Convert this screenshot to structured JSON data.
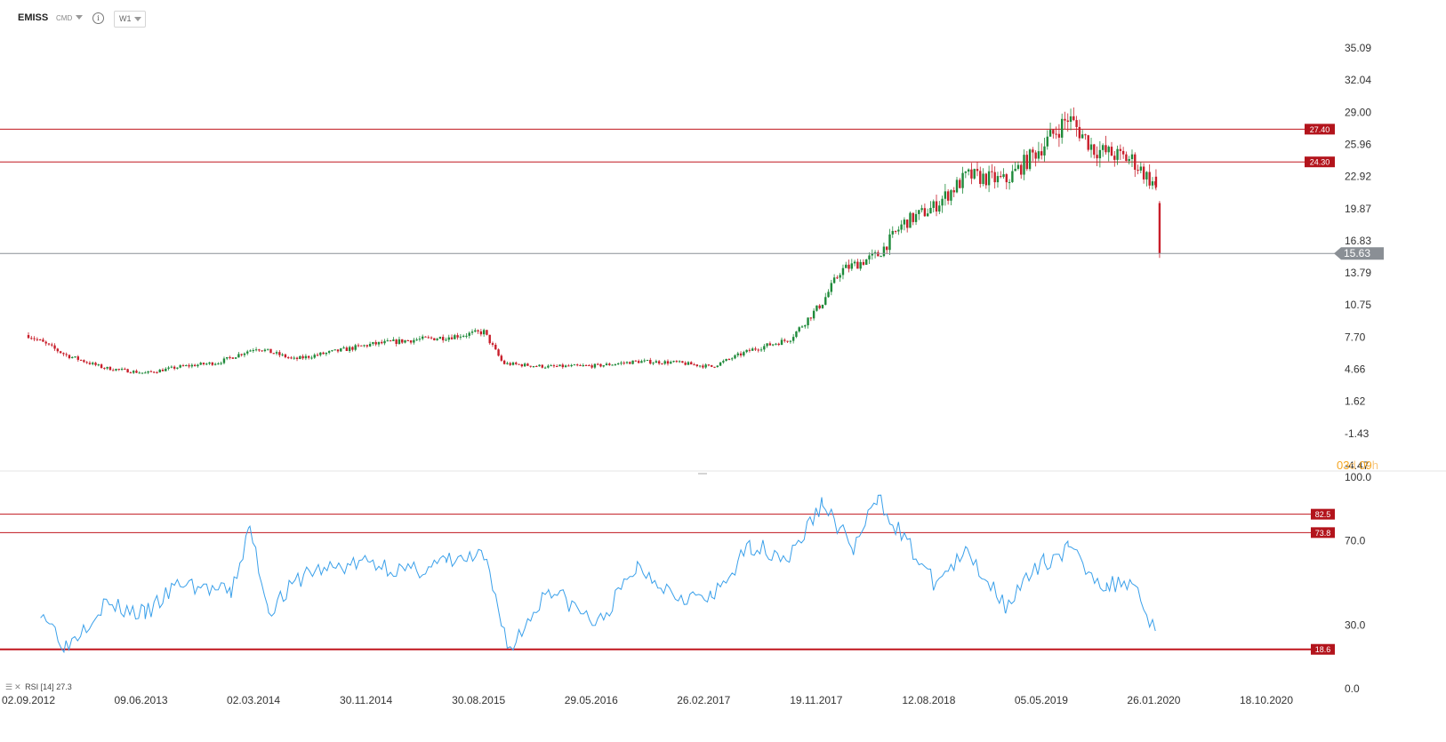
{
  "header": {
    "symbol": "EMISS",
    "source": "CMD",
    "info_icon": "info-icon",
    "timeframe": "W1"
  },
  "price_axis": {
    "labels": [
      "35.09",
      "32.04",
      "29.00",
      "25.96",
      "22.92",
      "19.87",
      "16.83",
      "13.79",
      "10.75",
      "7.70",
      "4.66",
      "1.62",
      "-1.43",
      "-4.47"
    ],
    "min": -4.47,
    "max": 35.09
  },
  "levels": [
    {
      "value": 27.4,
      "label": "27.40",
      "color": "#c0161e"
    },
    {
      "value": 24.3,
      "label": "24.30",
      "color": "#c0161e"
    }
  ],
  "current_price": {
    "value": 15.63,
    "label": "15.63",
    "color": "#8a8f95"
  },
  "countdown": {
    "days": "03",
    "days_unit": "d",
    "hours": "09",
    "hours_unit": "h"
  },
  "rsi": {
    "label": "RSI",
    "period": "[14]",
    "value": "27.3",
    "axis_labels": [
      "100.0",
      "70.0",
      "30.0",
      "0.0"
    ],
    "levels": [
      {
        "value": 82.5,
        "label": "82.5"
      },
      {
        "value": 73.8,
        "label": "73.8"
      },
      {
        "value": 18.6,
        "label": "18.6"
      }
    ]
  },
  "date_axis": {
    "labels": [
      "02.09.2012",
      "09.06.2013",
      "02.03.2014",
      "30.11.2014",
      "30.08.2015",
      "29.05.2016",
      "26.02.2017",
      "19.11.2017",
      "12.08.2018",
      "05.05.2019",
      "26.01.2020",
      "18.10.2020"
    ]
  },
  "chart_data": {
    "type": "candlestick",
    "price_series_approx": [
      [
        "2012-09-02",
        7.9
      ],
      [
        "2012-12-01",
        6.0
      ],
      [
        "2013-03-01",
        4.8
      ],
      [
        "2013-06-09",
        4.3
      ],
      [
        "2013-09-01",
        4.9
      ],
      [
        "2013-12-01",
        5.3
      ],
      [
        "2014-03-02",
        6.7
      ],
      [
        "2014-06-01",
        5.6
      ],
      [
        "2014-09-01",
        6.3
      ],
      [
        "2014-11-30",
        7.0
      ],
      [
        "2015-03-01",
        7.4
      ],
      [
        "2015-06-01",
        7.7
      ],
      [
        "2015-08-30",
        8.2
      ],
      [
        "2015-10-15",
        5.2
      ],
      [
        "2016-02-01",
        4.9
      ],
      [
        "2016-05-29",
        5.0
      ],
      [
        "2016-09-01",
        5.4
      ],
      [
        "2016-12-01",
        5.3
      ],
      [
        "2017-02-26",
        4.9
      ],
      [
        "2017-06-01",
        6.5
      ],
      [
        "2017-09-01",
        7.5
      ],
      [
        "2017-11-19",
        11.0
      ],
      [
        "2018-01-01",
        14.0
      ],
      [
        "2018-04-01",
        15.5
      ],
      [
        "2018-06-01",
        18.5
      ],
      [
        "2018-08-12",
        20.0
      ],
      [
        "2018-11-01",
        23.0
      ],
      [
        "2019-02-01",
        22.5
      ],
      [
        "2019-05-05",
        26.0
      ],
      [
        "2019-07-01",
        28.5
      ],
      [
        "2019-09-01",
        25.5
      ],
      [
        "2019-12-01",
        24.5
      ],
      [
        "2020-01-26",
        22.0
      ],
      [
        "2020-02-05",
        15.63
      ]
    ],
    "rsi_series_approx": [
      [
        "2012-10-01",
        38
      ],
      [
        "2012-12-01",
        20
      ],
      [
        "2013-03-01",
        40
      ],
      [
        "2013-06-09",
        35
      ],
      [
        "2013-09-01",
        50
      ],
      [
        "2014-01-01",
        45
      ],
      [
        "2014-02-15",
        76
      ],
      [
        "2014-04-01",
        37
      ],
      [
        "2014-07-01",
        55
      ],
      [
        "2014-11-30",
        60
      ],
      [
        "2015-03-01",
        55
      ],
      [
        "2015-06-01",
        60
      ],
      [
        "2015-08-30",
        62
      ],
      [
        "2015-11-01",
        18
      ],
      [
        "2016-02-01",
        48
      ],
      [
        "2016-05-29",
        30
      ],
      [
        "2016-09-01",
        58
      ],
      [
        "2016-12-01",
        45
      ],
      [
        "2017-02-26",
        42
      ],
      [
        "2017-06-01",
        68
      ],
      [
        "2017-09-01",
        62
      ],
      [
        "2017-11-19",
        88
      ],
      [
        "2018-02-01",
        66
      ],
      [
        "2018-04-01",
        90
      ],
      [
        "2018-08-12",
        50
      ],
      [
        "2018-11-01",
        64
      ],
      [
        "2019-02-01",
        40
      ],
      [
        "2019-05-05",
        60
      ],
      [
        "2019-07-01",
        66
      ],
      [
        "2019-10-01",
        48
      ],
      [
        "2019-12-01",
        52
      ],
      [
        "2020-01-26",
        27.3
      ]
    ]
  }
}
